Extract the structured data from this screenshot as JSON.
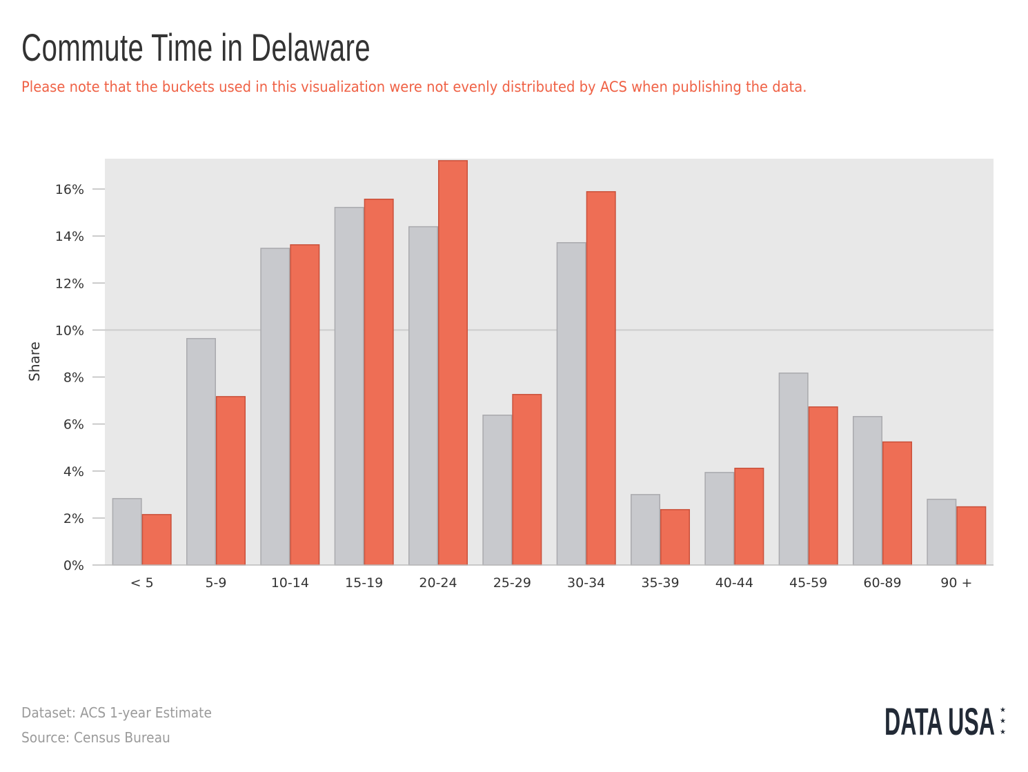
{
  "header": {
    "title": "Commute Time in Delaware",
    "subtitle": "Please note that the buckets used in this visualization were not evenly distributed by ACS when publishing the data."
  },
  "chart_data": {
    "type": "bar",
    "title": "Commute Time in Delaware",
    "xlabel": "",
    "ylabel": "Share",
    "ylim": [
      0,
      17.3
    ],
    "yticks": [
      "0%",
      "2%",
      "4%",
      "6%",
      "8%",
      "10%",
      "12%",
      "14%",
      "16%"
    ],
    "categories": [
      "< 5",
      "5-9",
      "10-14",
      "15-19",
      "20-24",
      "25-29",
      "30-34",
      "35-39",
      "40-44",
      "45-59",
      "60-89",
      "90 +"
    ],
    "series": [
      {
        "color": "#c8c9cd",
        "stroke": "#a9a9ad",
        "values": [
          2.85,
          9.66,
          13.5,
          15.24,
          14.42,
          6.4,
          13.74,
          3.02,
          3.96,
          8.19,
          6.34,
          2.82
        ]
      },
      {
        "color": "#ee6e55",
        "stroke": "#c9503a",
        "values": [
          2.17,
          7.19,
          13.65,
          15.59,
          17.23,
          7.28,
          15.91,
          2.38,
          4.14,
          6.75,
          5.26,
          2.5
        ]
      }
    ],
    "grid": true,
    "highlight_gridline": "10%",
    "legend": "none",
    "background": "#e8e8e8"
  },
  "footer": {
    "dataset": "Dataset: ACS 1-year Estimate",
    "source": "Source: Census Bureau"
  },
  "logo": {
    "text": "DATA USA",
    "stars": "★★★"
  }
}
